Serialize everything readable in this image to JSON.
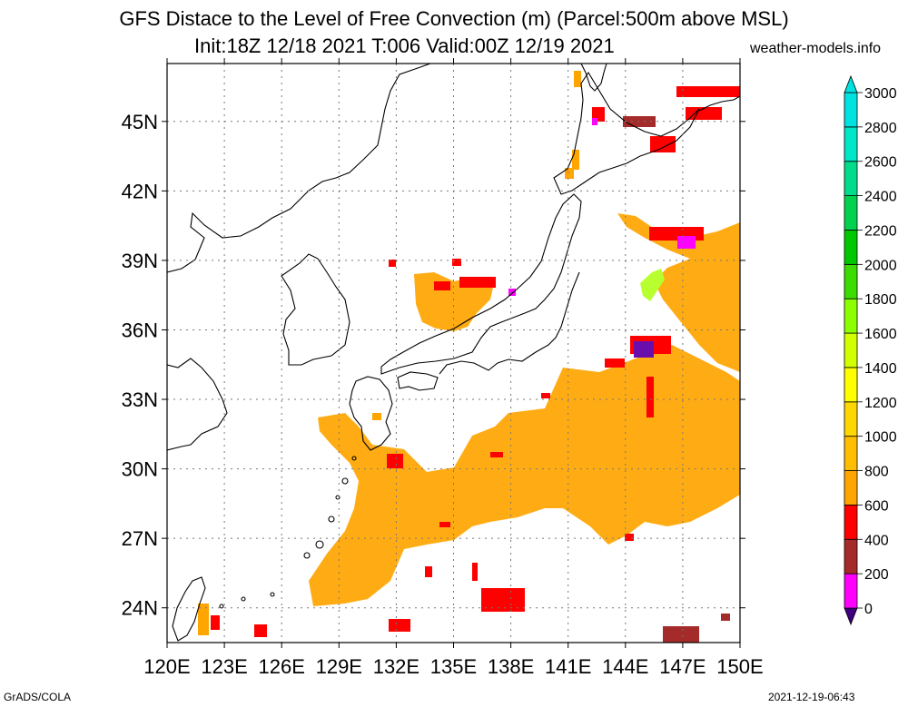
{
  "header": {
    "title_line1": "GFS Distace to the Level of Free Convection (m) (Parcel:500m above MSL)",
    "title_line2": "Init:18Z 12/18 2021 T:006 Valid:00Z 12/19 2021",
    "site": "weather-models.info"
  },
  "footer": {
    "left": "GrADS/COLA",
    "right": "2021-12-19-06:43"
  },
  "map": {
    "lon_range": [
      120,
      150
    ],
    "lat_range": [
      22.5,
      47.5
    ],
    "lon_ticks": [
      "120E",
      "123E",
      "126E",
      "129E",
      "132E",
      "135E",
      "138E",
      "141E",
      "144E",
      "147E",
      "150E"
    ],
    "lat_ticks": [
      "24N",
      "27N",
      "30N",
      "33N",
      "36N",
      "39N",
      "42N",
      "45N"
    ],
    "grid": true
  },
  "colorbar": {
    "levels": [
      "0",
      "200",
      "400",
      "600",
      "800",
      "1000",
      "1200",
      "1400",
      "1600",
      "1800",
      "2000",
      "2200",
      "2400",
      "2600",
      "2800",
      "3000"
    ],
    "colors": [
      "#3f007f",
      "#ff00ff",
      "#a52a2a",
      "#ff0000",
      "#ffa500",
      "#ffbe00",
      "#ffd700",
      "#ffff00",
      "#d2ff00",
      "#8cff00",
      "#3cdc00",
      "#00c800",
      "#00d250",
      "#00dc8c",
      "#00e6c8",
      "#00e1e1"
    ]
  }
}
